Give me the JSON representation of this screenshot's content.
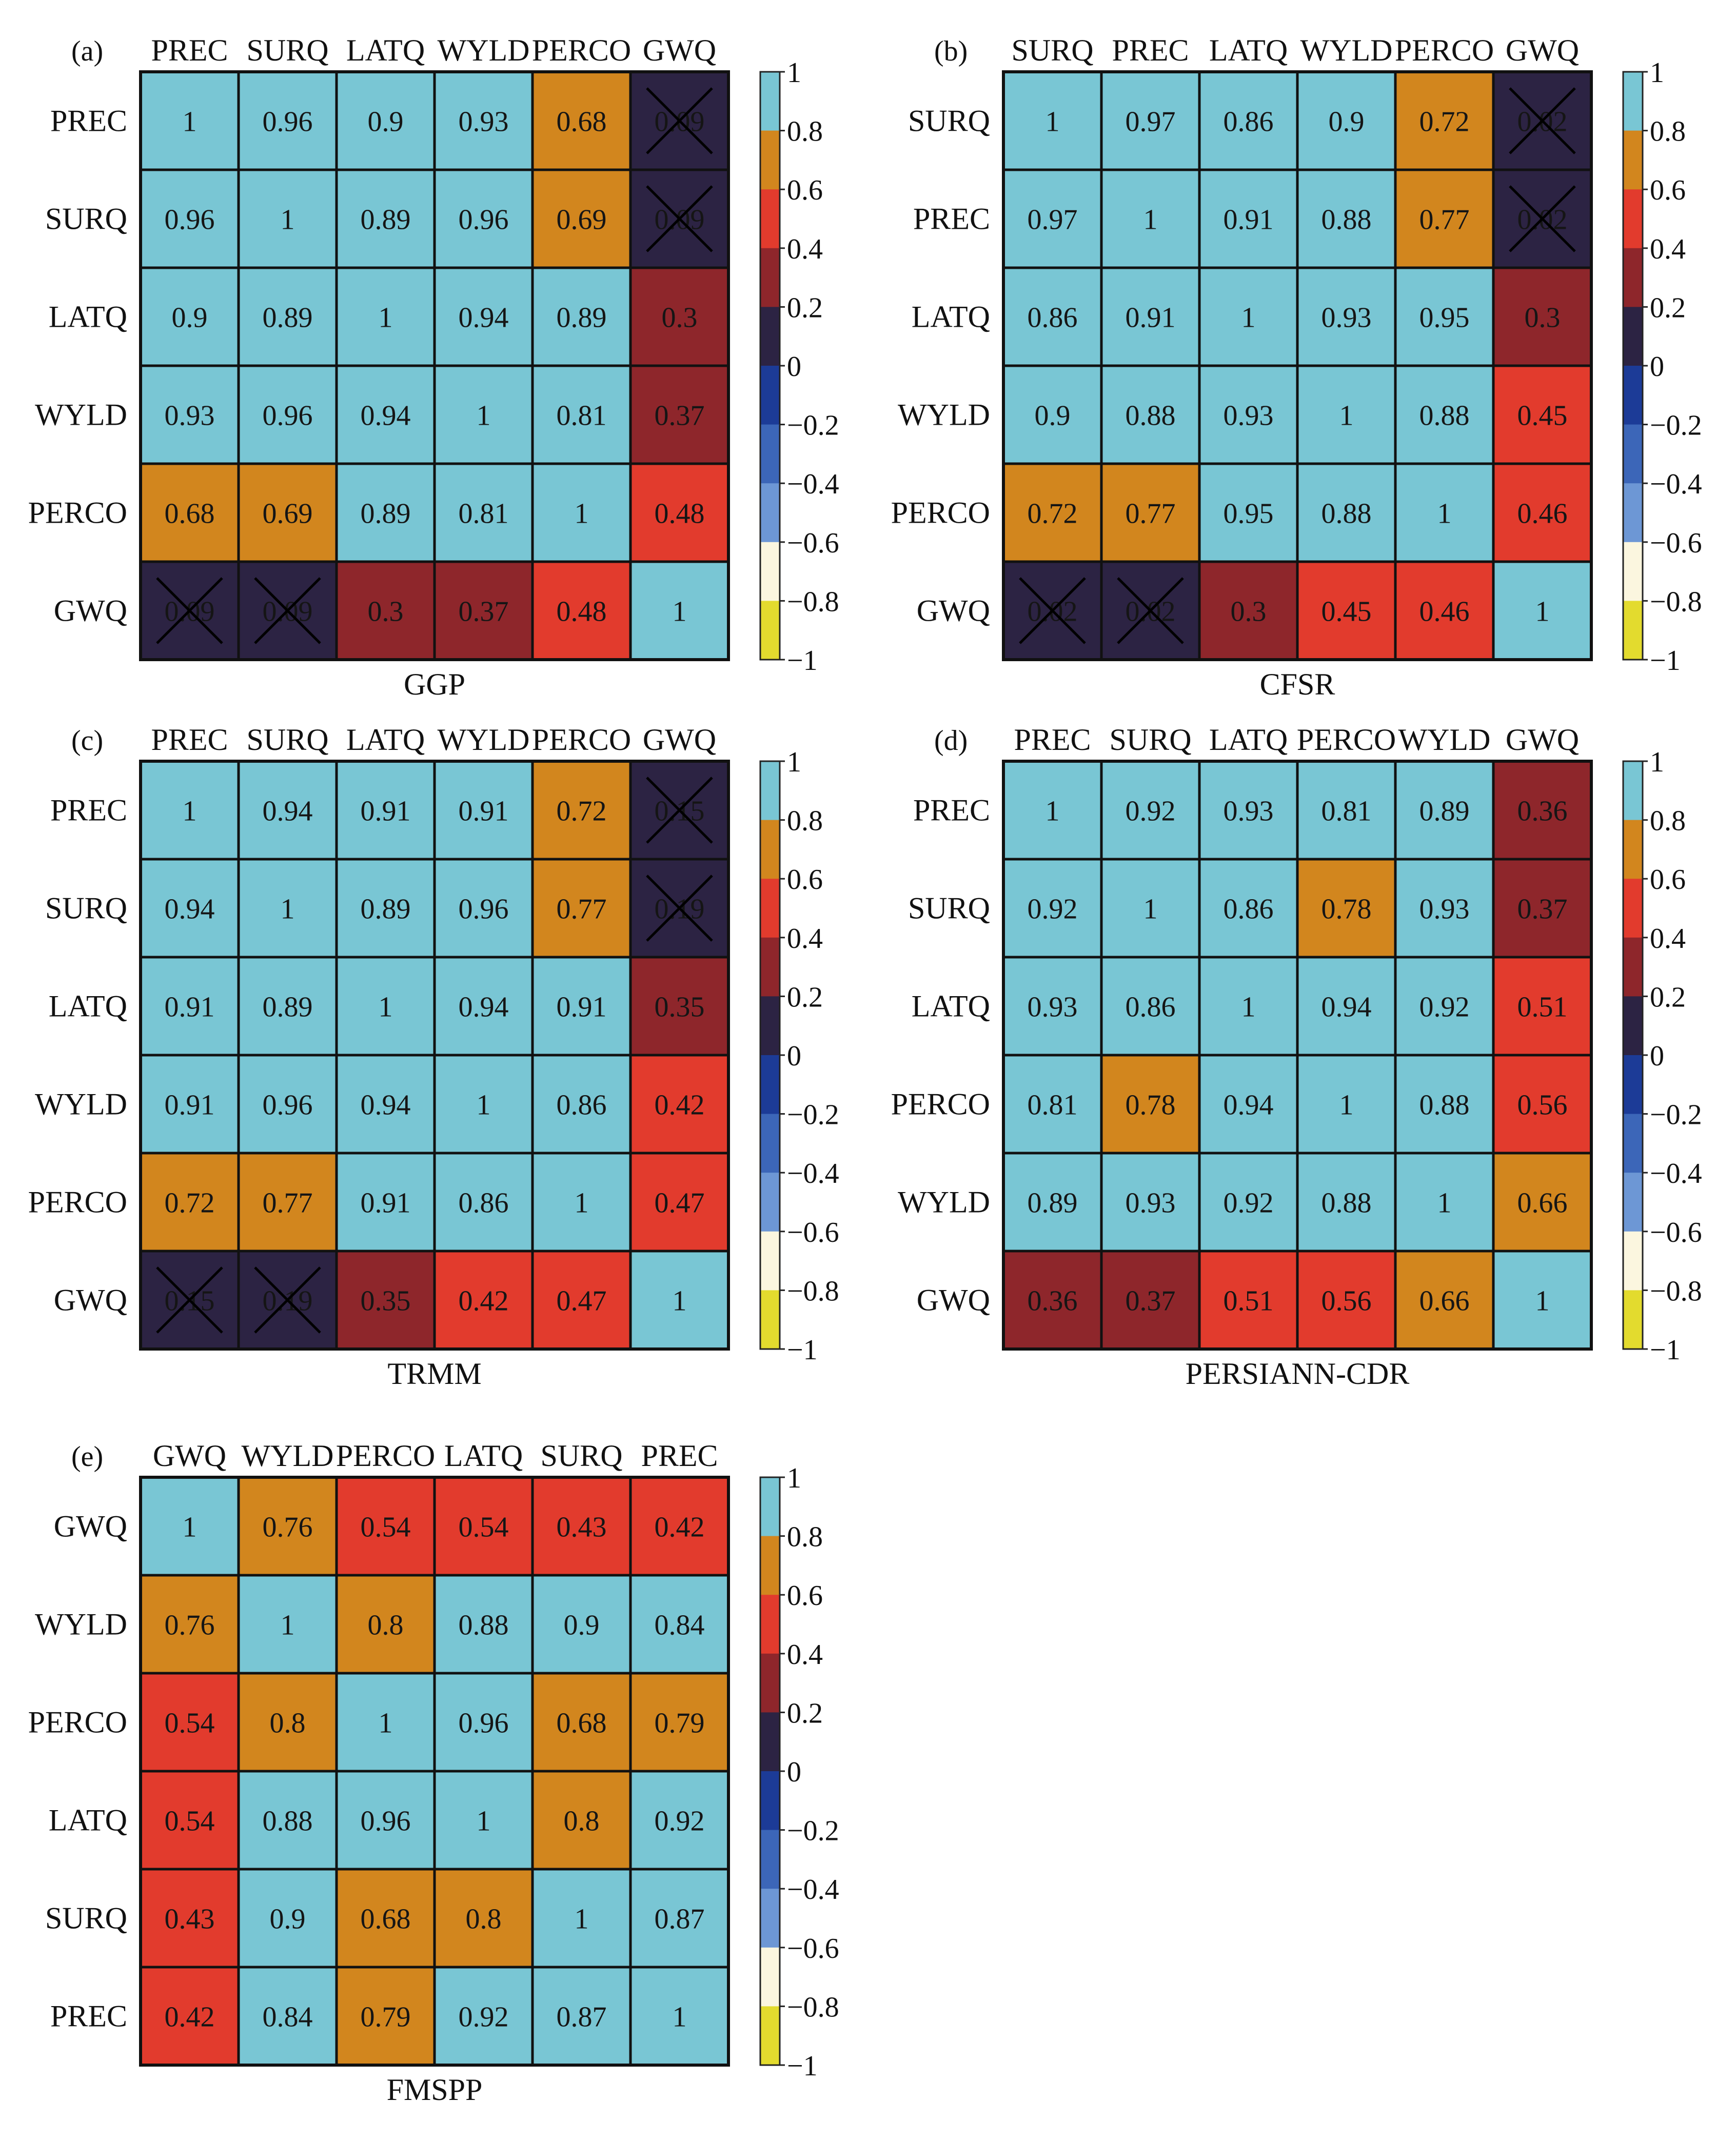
{
  "figure": {
    "colormap": {
      "bins": [
        {
          "from": 0.8,
          "to": 1.0,
          "color": "#79C6D4"
        },
        {
          "from": 0.6,
          "to": 0.8,
          "color": "#D2861E"
        },
        {
          "from": 0.4,
          "to": 0.6,
          "color": "#E23B2D"
        },
        {
          "from": 0.2,
          "to": 0.4,
          "color": "#8E262B"
        },
        {
          "from": 0.0,
          "to": 0.2,
          "color": "#2C2343"
        },
        {
          "from": -0.2,
          "to": 0.0,
          "color": "#1C3B97"
        },
        {
          "from": -0.4,
          "to": -0.2,
          "color": "#3C66B8"
        },
        {
          "from": -0.6,
          "to": -0.4,
          "color": "#6D97D5"
        },
        {
          "from": -0.8,
          "to": -0.6,
          "color": "#FBF6DF"
        },
        {
          "from": -1.0,
          "to": -0.8,
          "color": "#E3DB2E"
        }
      ],
      "ticks": [
        1,
        0.8,
        0.6,
        0.4,
        0.2,
        0,
        -0.2,
        -0.4,
        -0.6,
        -0.8,
        -1
      ],
      "tick_labels": [
        "1",
        "0.8",
        "0.6",
        "0.4",
        "0.2",
        "0",
        "−0.2",
        "−0.4",
        "−0.6",
        "−0.8",
        "−1"
      ]
    }
  },
  "chart_data": [
    {
      "type": "heatmap",
      "panel_label": "(a)",
      "title": "GGP",
      "columns": [
        "PREC",
        "SURQ",
        "LATQ",
        "WYLD",
        "PERCO",
        "GWQ"
      ],
      "rows": [
        "PREC",
        "SURQ",
        "LATQ",
        "WYLD",
        "PERCO",
        "GWQ"
      ],
      "values": [
        [
          1,
          0.96,
          0.9,
          0.93,
          0.68,
          0.09
        ],
        [
          0.96,
          1,
          0.89,
          0.96,
          0.69,
          0.09
        ],
        [
          0.9,
          0.89,
          1,
          0.94,
          0.89,
          0.3
        ],
        [
          0.93,
          0.96,
          0.94,
          1,
          0.81,
          0.37
        ],
        [
          0.68,
          0.69,
          0.89,
          0.81,
          1,
          0.48
        ],
        [
          0.09,
          0.09,
          0.3,
          0.37,
          0.48,
          1
        ]
      ],
      "crossed": [
        [
          0,
          5
        ],
        [
          1,
          5
        ],
        [
          5,
          0
        ],
        [
          5,
          1
        ]
      ],
      "colorbar_range": [
        -1,
        1
      ]
    },
    {
      "type": "heatmap",
      "panel_label": "(b)",
      "title": "CFSR",
      "columns": [
        "SURQ",
        "PREC",
        "LATQ",
        "WYLD",
        "PERCO",
        "GWQ"
      ],
      "rows": [
        "SURQ",
        "PREC",
        "LATQ",
        "WYLD",
        "PERCO",
        "GWQ"
      ],
      "values": [
        [
          1,
          0.97,
          0.86,
          0.9,
          0.72,
          0.02
        ],
        [
          0.97,
          1,
          0.91,
          0.88,
          0.77,
          0.02
        ],
        [
          0.86,
          0.91,
          1,
          0.93,
          0.95,
          0.3
        ],
        [
          0.9,
          0.88,
          0.93,
          1,
          0.88,
          0.45
        ],
        [
          0.72,
          0.77,
          0.95,
          0.88,
          1,
          0.46
        ],
        [
          0.02,
          0.02,
          0.3,
          0.45,
          0.46,
          1
        ]
      ],
      "crossed": [
        [
          0,
          5
        ],
        [
          1,
          5
        ],
        [
          5,
          0
        ],
        [
          5,
          1
        ]
      ],
      "colorbar_range": [
        -1,
        1
      ]
    },
    {
      "type": "heatmap",
      "panel_label": "(c)",
      "title": "TRMM",
      "columns": [
        "PREC",
        "SURQ",
        "LATQ",
        "WYLD",
        "PERCO",
        "GWQ"
      ],
      "rows": [
        "PREC",
        "SURQ",
        "LATQ",
        "WYLD",
        "PERCO",
        "GWQ"
      ],
      "values": [
        [
          1,
          0.94,
          0.91,
          0.91,
          0.72,
          0.15
        ],
        [
          0.94,
          1,
          0.89,
          0.96,
          0.77,
          0.19
        ],
        [
          0.91,
          0.89,
          1,
          0.94,
          0.91,
          0.35
        ],
        [
          0.91,
          0.96,
          0.94,
          1,
          0.86,
          0.42
        ],
        [
          0.72,
          0.77,
          0.91,
          0.86,
          1,
          0.47
        ],
        [
          0.15,
          0.19,
          0.35,
          0.42,
          0.47,
          1
        ]
      ],
      "crossed": [
        [
          0,
          5
        ],
        [
          1,
          5
        ],
        [
          5,
          0
        ],
        [
          5,
          1
        ]
      ],
      "colorbar_range": [
        -1,
        1
      ]
    },
    {
      "type": "heatmap",
      "panel_label": "(d)",
      "title": "PERSIANN-CDR",
      "columns": [
        "PREC",
        "SURQ",
        "LATQ",
        "PERCO",
        "WYLD",
        "GWQ"
      ],
      "rows": [
        "PREC",
        "SURQ",
        "LATQ",
        "PERCO",
        "WYLD",
        "GWQ"
      ],
      "values": [
        [
          1,
          0.92,
          0.93,
          0.81,
          0.89,
          0.36
        ],
        [
          0.92,
          1,
          0.86,
          0.78,
          0.93,
          0.37
        ],
        [
          0.93,
          0.86,
          1,
          0.94,
          0.92,
          0.51
        ],
        [
          0.81,
          0.78,
          0.94,
          1,
          0.88,
          0.56
        ],
        [
          0.89,
          0.93,
          0.92,
          0.88,
          1,
          0.66
        ],
        [
          0.36,
          0.37,
          0.51,
          0.56,
          0.66,
          1
        ]
      ],
      "crossed": [],
      "colorbar_range": [
        -1,
        1
      ]
    },
    {
      "type": "heatmap",
      "panel_label": "(e)",
      "title": "FMSPP",
      "columns": [
        "GWQ",
        "WYLD",
        "PERCO",
        "LATQ",
        "SURQ",
        "PREC"
      ],
      "rows": [
        "GWQ",
        "WYLD",
        "PERCO",
        "LATQ",
        "SURQ",
        "PREC"
      ],
      "values": [
        [
          1,
          0.76,
          0.54,
          0.54,
          0.43,
          0.42
        ],
        [
          0.76,
          1,
          0.8,
          0.88,
          0.9,
          0.84
        ],
        [
          0.54,
          0.8,
          1,
          0.96,
          0.68,
          0.79
        ],
        [
          0.54,
          0.88,
          0.96,
          1,
          0.8,
          0.92
        ],
        [
          0.43,
          0.9,
          0.68,
          0.8,
          1,
          0.87
        ],
        [
          0.42,
          0.84,
          0.79,
          0.92,
          0.87,
          1
        ]
      ],
      "crossed": [],
      "colorbar_range": [
        -1,
        1
      ]
    }
  ]
}
